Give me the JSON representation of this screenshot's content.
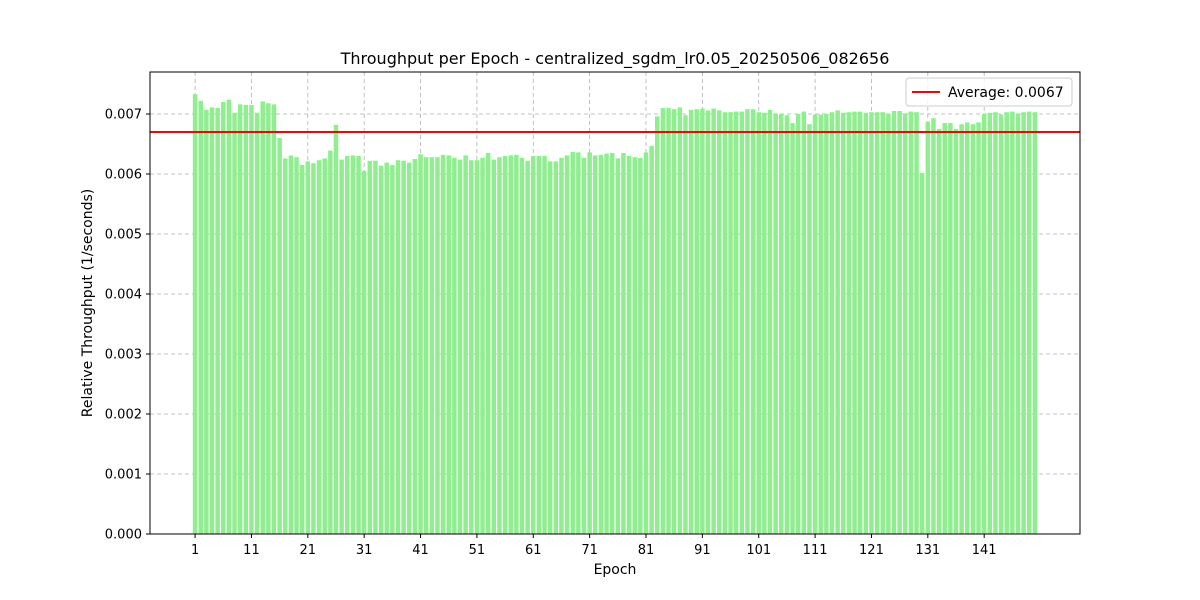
{
  "chart_data": {
    "type": "bar",
    "title": "Throughput per Epoch - centralized_sgdm_lr0.05_20250506_082656",
    "xlabel": "Epoch",
    "ylabel": "Relative Throughput (1/seconds)",
    "xlim": [
      -7,
      158
    ],
    "ylim": [
      0,
      0.0077
    ],
    "x_ticks": [
      1,
      11,
      21,
      31,
      41,
      51,
      61,
      71,
      81,
      91,
      101,
      111,
      121,
      131,
      141
    ],
    "x_tick_labels": [
      "1",
      "11",
      "21",
      "31",
      "41",
      "51",
      "61",
      "71",
      "81",
      "91",
      "101",
      "111",
      "121",
      "131",
      "141"
    ],
    "y_ticks": [
      0,
      0.001,
      0.002,
      0.003,
      0.004,
      0.005,
      0.006,
      0.007
    ],
    "y_tick_labels": [
      "0.000",
      "0.001",
      "0.002",
      "0.003",
      "0.004",
      "0.005",
      "0.006",
      "0.007"
    ],
    "grid": true,
    "bar_color": "#90ee90",
    "average": {
      "value": 0.0067,
      "label": "Average: 0.0067",
      "color": "#ff0000"
    },
    "legend": {
      "placement": "top-right",
      "entries": [
        "Average: 0.0067"
      ]
    },
    "epochs_start": 1,
    "values": [
      0.00733,
      0.00722,
      0.00707,
      0.00711,
      0.0071,
      0.0072,
      0.00724,
      0.00702,
      0.00716,
      0.00715,
      0.00715,
      0.00702,
      0.00721,
      0.00718,
      0.00716,
      0.0066,
      0.00626,
      0.00631,
      0.00628,
      0.00615,
      0.00621,
      0.00618,
      0.00623,
      0.00626,
      0.00639,
      0.00682,
      0.00624,
      0.0063,
      0.00631,
      0.0063,
      0.00605,
      0.00622,
      0.00622,
      0.00614,
      0.00619,
      0.00615,
      0.00623,
      0.00622,
      0.00619,
      0.00625,
      0.00633,
      0.00628,
      0.00628,
      0.00628,
      0.00632,
      0.00631,
      0.00627,
      0.00624,
      0.00631,
      0.00623,
      0.00623,
      0.00627,
      0.00635,
      0.00624,
      0.00628,
      0.0063,
      0.00631,
      0.00632,
      0.00627,
      0.00622,
      0.0063,
      0.0063,
      0.0063,
      0.00621,
      0.00621,
      0.00627,
      0.00631,
      0.00637,
      0.00636,
      0.00627,
      0.00636,
      0.00631,
      0.00632,
      0.00634,
      0.00635,
      0.00626,
      0.00635,
      0.0063,
      0.00628,
      0.00627,
      0.00636,
      0.00647,
      0.00696,
      0.0071,
      0.0071,
      0.00708,
      0.00711,
      0.00698,
      0.00707,
      0.00708,
      0.00709,
      0.00706,
      0.00709,
      0.00706,
      0.00703,
      0.00703,
      0.00704,
      0.00704,
      0.00708,
      0.00708,
      0.00703,
      0.00702,
      0.00707,
      0.00701,
      0.007,
      0.00698,
      0.00685,
      0.007,
      0.00704,
      0.00683,
      0.00699,
      0.00699,
      0.007,
      0.00703,
      0.00706,
      0.00702,
      0.00703,
      0.00704,
      0.00704,
      0.00702,
      0.00703,
      0.00703,
      0.00703,
      0.00701,
      0.00705,
      0.00705,
      0.00701,
      0.00704,
      0.00703,
      0.00602,
      0.00687,
      0.00693,
      0.00675,
      0.00685,
      0.00685,
      0.00675,
      0.00683,
      0.00686,
      0.00683,
      0.00686,
      0.007,
      0.00702,
      0.00703,
      0.00699,
      0.00703,
      0.00704,
      0.00701,
      0.00703,
      0.00704,
      0.00703
    ]
  }
}
